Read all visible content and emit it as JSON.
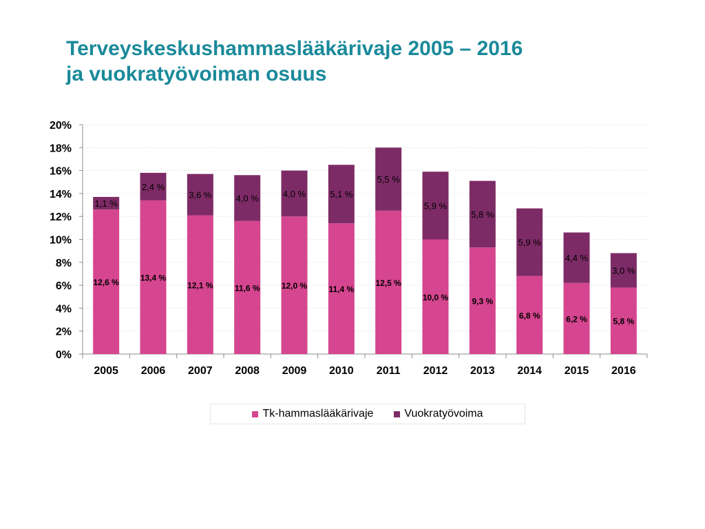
{
  "slide": {
    "title_line1": "Terveyskeskushammaslääkärivaje 2005 – 2016",
    "title_line2": "ja vuokratyövoiman osuus"
  },
  "chart_data": {
    "type": "bar",
    "stacked": true,
    "categories": [
      "2005",
      "2006",
      "2007",
      "2008",
      "2009",
      "2010",
      "2011",
      "2012",
      "2013",
      "2014",
      "2015",
      "2016"
    ],
    "series": [
      {
        "name": "Tk-hammaslääkärivaje",
        "color": "#d6458f",
        "values": [
          12.6,
          13.4,
          12.1,
          11.6,
          12.0,
          11.4,
          12.5,
          10.0,
          9.3,
          6.8,
          6.2,
          5.8
        ],
        "labels": [
          "12,6 %",
          "13,4 %",
          "12,1 %",
          "11,6 %",
          "12,0 %",
          "11,4 %",
          "12,5 %",
          "10,0 %",
          "9,3 %",
          "6,8 %",
          "6,2 %",
          "5,8 %"
        ]
      },
      {
        "name": "Vuokratyövoima",
        "color": "#7d2b66",
        "values": [
          1.1,
          2.4,
          3.6,
          4.0,
          4.0,
          5.1,
          5.5,
          5.9,
          5.8,
          5.9,
          4.4,
          3.0
        ],
        "labels": [
          "1,1 %",
          "2,4 %",
          "3,6 %",
          "4,0 %",
          "4,0 %",
          "5,1 %",
          "5,5 %",
          "5,9 %",
          "5,8 %",
          "5,9 %",
          "4,4 %",
          "3,0 %"
        ]
      }
    ],
    "ylim": [
      0,
      20
    ],
    "yticks": [
      "0%",
      "2%",
      "4%",
      "6%",
      "8%",
      "10%",
      "12%",
      "14%",
      "16%",
      "18%",
      "20%"
    ],
    "grid": true,
    "legend_position": "bottom"
  }
}
